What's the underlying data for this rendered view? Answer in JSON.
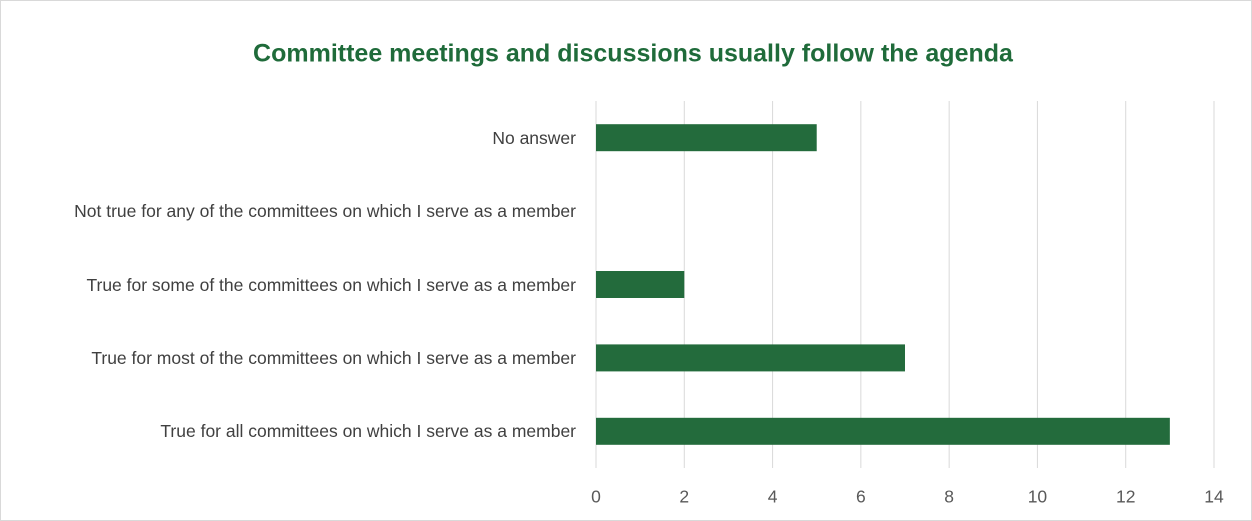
{
  "chart_data": {
    "type": "bar",
    "orientation": "horizontal",
    "title": "Committee meetings and discussions usually follow the agenda",
    "categories": [
      "No answer",
      "Not true for any of the committees on which I serve as a member",
      "True for some of the committees on which I serve as a member",
      "True for most of the committees on which I serve as a member",
      "True for all committees on which I serve as a member"
    ],
    "values": [
      5,
      0,
      2,
      7,
      13
    ],
    "color": "#236b3c",
    "xlim": [
      0,
      14
    ],
    "xticks": [
      0,
      2,
      4,
      6,
      8,
      10,
      12,
      14
    ],
    "grid": true
  }
}
